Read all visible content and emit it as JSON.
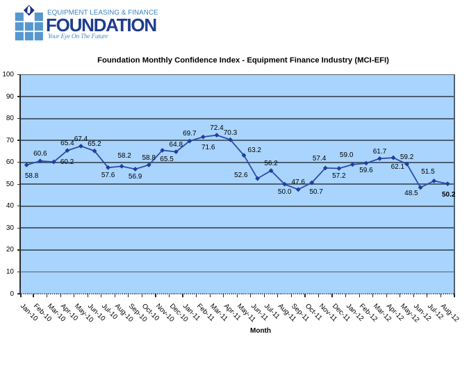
{
  "logo": {
    "top_line": "EQUIPMENT LEASING & FINANCE",
    "name": "FOUNDATION",
    "tagline": "Your Eye On The Future",
    "colors": {
      "squares": "#5697D0",
      "diamond": "#1B3181",
      "top_line_text": "#4183C4",
      "name_text": "#1E3D8F",
      "tagline_text": "#4D8CC6"
    }
  },
  "chart_data": {
    "type": "line",
    "title": "Foundation Monthly Confidence Index - Equipment Finance Industry (MCI-EFI)",
    "xlabel": "Month",
    "ylabel": "",
    "ylim": [
      0,
      100
    ],
    "ytick_step": 10,
    "grid": "horizontal",
    "legend": "none",
    "categories": [
      "Jan-10",
      "Feb-10",
      "Mar-10",
      "Apr-10",
      "May-10",
      "Jun-10",
      "Jul-10",
      "Aug-10",
      "Sep-10",
      "Oct-10",
      "Nov-10",
      "Dec-10",
      "Jan-11",
      "Feb-11",
      "Mar-11",
      "Apr-11",
      "May-11",
      "Jun-11",
      "Jul-11",
      "Aug-11",
      "Sep-11",
      "Oct-11",
      "Nov-11",
      "Dec-11",
      "Jan-12",
      "Feb-12",
      "Mar-12",
      "Apr-12",
      "May-12",
      "Jun-12",
      "Jul-12",
      "Aug-12"
    ],
    "values": [
      58.8,
      60.6,
      60.2,
      65.4,
      67.4,
      65.2,
      57.6,
      58.2,
      56.9,
      58.8,
      65.5,
      64.8,
      69.7,
      71.6,
      72.4,
      70.3,
      63.2,
      52.6,
      56.2,
      50.0,
      47.6,
      50.7,
      57.4,
      57.2,
      59.0,
      59.6,
      61.7,
      62.1,
      59.2,
      48.5,
      51.5,
      50.2
    ],
    "label_positions": [
      "below-right-low",
      "above",
      "right",
      "above",
      "above",
      "above",
      "below",
      "above-high",
      "below",
      "above",
      "below-right",
      "above",
      "above",
      "below-right-low",
      "above",
      "above",
      "above-right",
      "left",
      "above",
      "below",
      "above",
      "below-right",
      "above-left",
      "below",
      "above-left",
      "below",
      "above",
      "below-right",
      "above",
      "below-left",
      "above-left",
      "below-low"
    ],
    "label_bold": [
      false,
      false,
      false,
      false,
      false,
      false,
      false,
      false,
      false,
      false,
      false,
      false,
      false,
      false,
      false,
      false,
      false,
      false,
      false,
      false,
      false,
      false,
      false,
      false,
      false,
      false,
      false,
      false,
      false,
      false,
      false,
      true
    ],
    "colors": {
      "plot_bg": "#A9D4FD",
      "gridline": "#4D5F73",
      "series_line": "#2C4CA8",
      "marker": "#1E3F9E",
      "y_axis_line": "#2B2B2B",
      "x_axis_line": "#4D5F73"
    }
  }
}
